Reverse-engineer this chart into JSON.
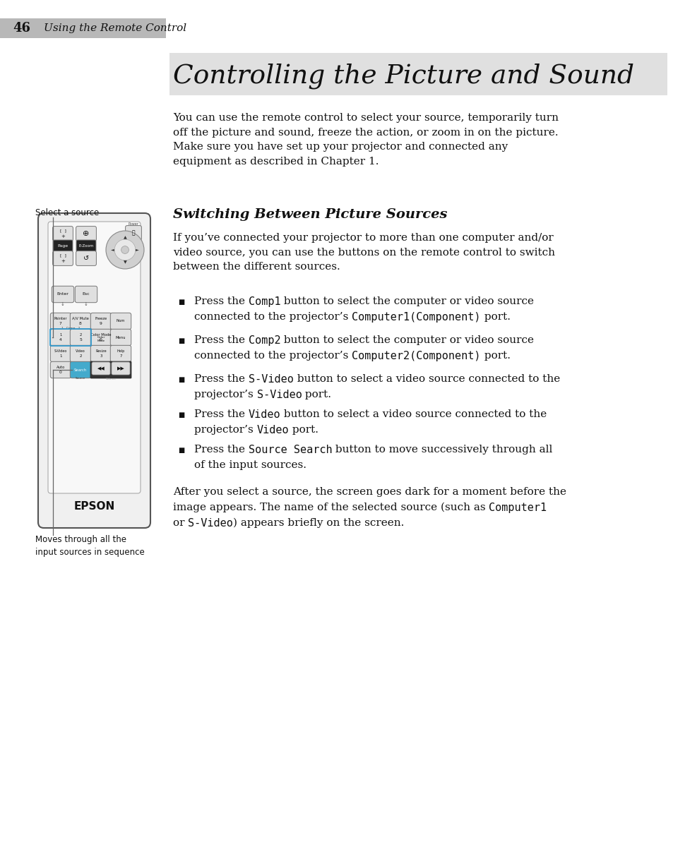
{
  "title": "Controlling the Picture and Sound",
  "title_bg_color": "#e0e0e0",
  "page_bg": "#ffffff",
  "page_number": "46",
  "page_label": "Using the Remote Control",
  "intro_text": "You can use the remote control to select your source, temporarily turn\noff the picture and sound, freeze the action, or zoom in on the picture.\nMake sure you have set up your projector and connected any\nequipment as described in Chapter 1.",
  "section_title": "Switching Between Picture Sources",
  "section_intro": "If you’ve connected your projector to more than one computer and/or\nvideo source, you can use the buttons on the remote control to switch\nbetween the different sources.",
  "label_source": "Select a source",
  "label_moves": "Moves through all the\ninput sources in sequence",
  "fig_w": 9.54,
  "fig_h": 12.27,
  "dpi": 100
}
